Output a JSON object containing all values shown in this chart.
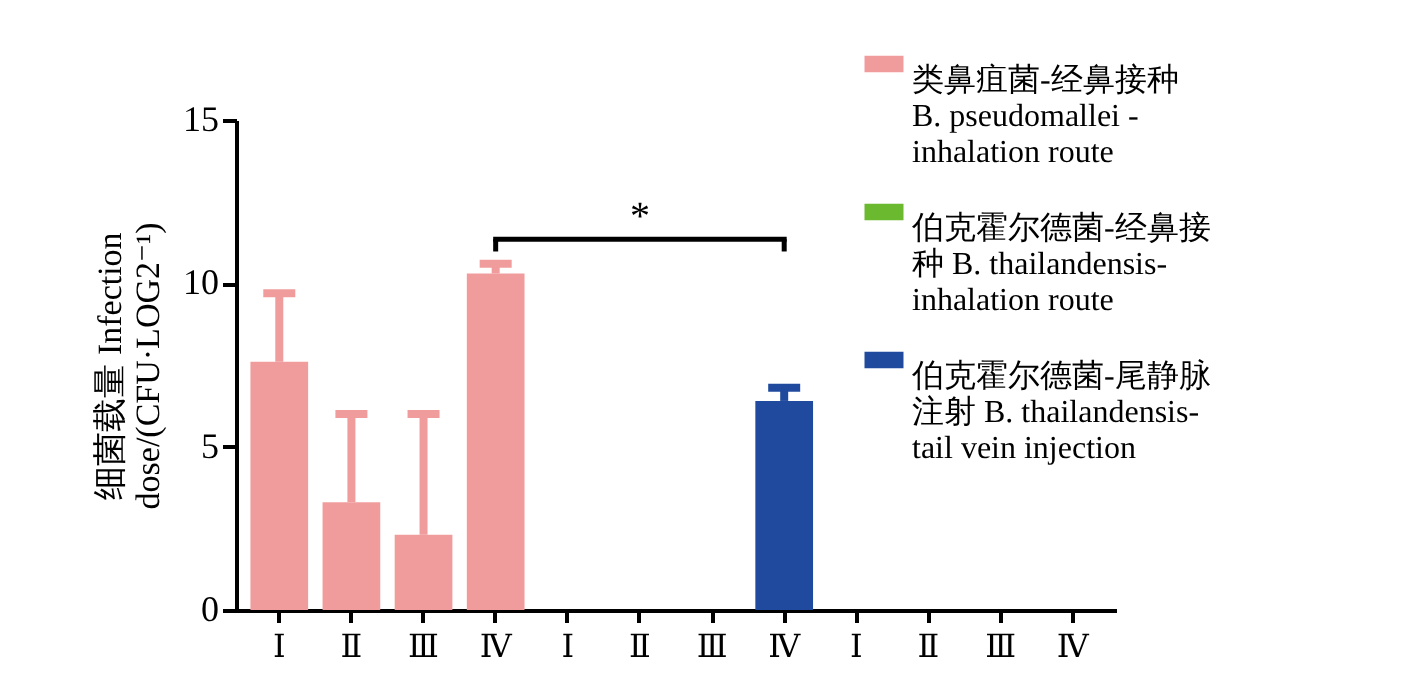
{
  "chart_data": {
    "type": "bar",
    "ylabel": "细菌载量 Infection dose/(CFU·LOG2⁻¹)",
    "categories": [
      "Ⅰ",
      "Ⅱ",
      "Ⅲ",
      "Ⅳ",
      "Ⅰ",
      "Ⅱ",
      "Ⅲ",
      "Ⅳ",
      "Ⅰ",
      "Ⅱ",
      "Ⅲ",
      "Ⅳ"
    ],
    "series": [
      {
        "name": "类鼻疽菌-经鼻接种 B. pseudomallei -inhalation route",
        "color": "#f19c9c",
        "values": [
          7.6,
          3.3,
          2.3,
          10.3,
          null,
          null,
          null,
          null,
          null,
          null,
          null,
          null
        ],
        "errors": [
          [
            7.6,
            9.7
          ],
          [
            3.3,
            6.0
          ],
          [
            2.3,
            6.0
          ],
          [
            10.3,
            10.6
          ],
          null,
          null,
          null,
          null,
          null,
          null,
          null,
          null
        ]
      },
      {
        "name": "伯克霍尔德菌-经鼻接种 B. thailandensis-inhalation route",
        "color": "#6ab92f",
        "values": [
          null,
          null,
          null,
          null,
          null,
          null,
          null,
          null,
          null,
          null,
          null,
          null
        ]
      },
      {
        "name": "伯克霍尔德菌-尾静脉注射 B. thailandensis-tail vein injection",
        "color": "#1f4a9e",
        "values": [
          null,
          null,
          null,
          null,
          null,
          null,
          null,
          6.4,
          null,
          null,
          null,
          null
        ],
        "errors": [
          null,
          null,
          null,
          null,
          null,
          null,
          null,
          [
            6.4,
            6.8
          ],
          null,
          null,
          null,
          null
        ]
      }
    ],
    "ylim": [
      0,
      15
    ],
    "yticks": [
      0,
      5,
      10,
      15
    ],
    "grid": false,
    "legend": "right",
    "annotations": [
      "*"
    ]
  }
}
